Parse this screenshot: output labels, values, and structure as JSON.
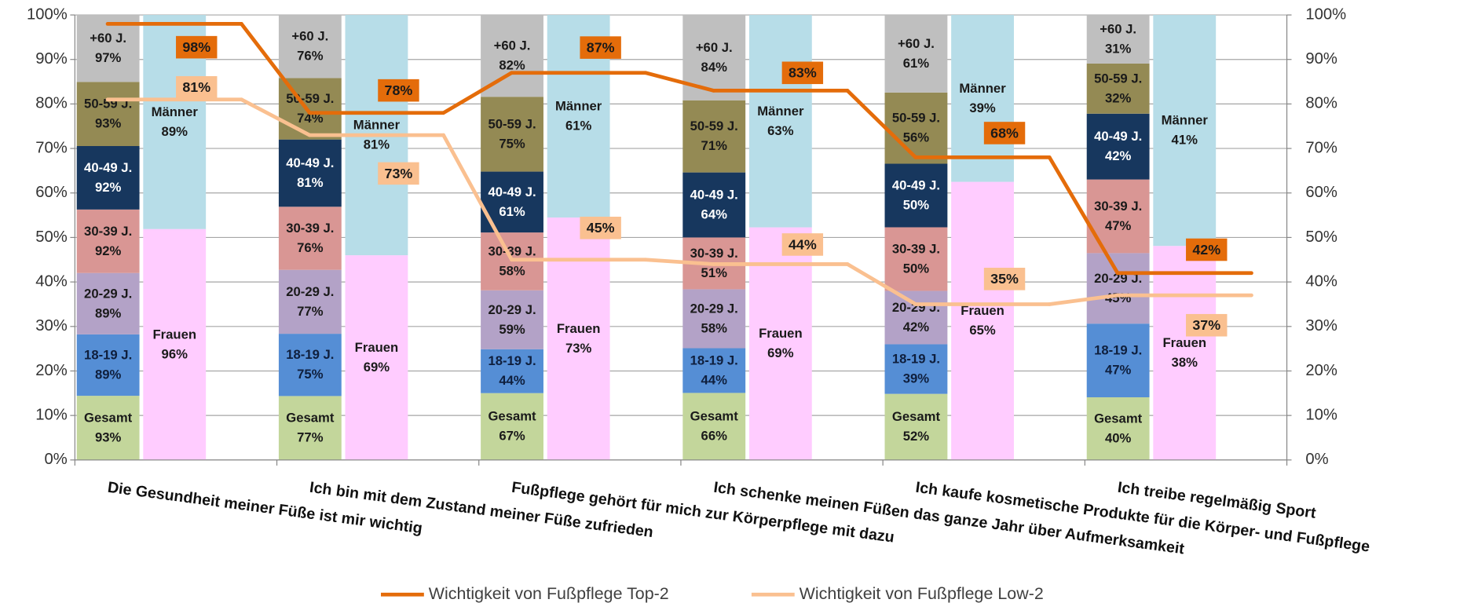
{
  "chart_data": {
    "type": "bar",
    "stacking": "percent",
    "categories": [
      "Die Gesundheit meiner Füße ist mir wichtig",
      "Ich bin mit dem Zustand meiner Füße zufrieden",
      "Fußpflege gehört für mich zur Körperpflege mit dazu",
      "Ich schenke meinen Füßen das ganze Jahr über Aufmerksamkeit",
      "Ich kaufe kosmetische Produkte für die Körper- und Fußpflege",
      "Ich treibe regelmäßig Sport"
    ],
    "stacks": [
      {
        "series": [
          {
            "name": "Gesamt",
            "color": "#c3d69b",
            "label_color": "#1a1a1a",
            "values": [
              93,
              77,
              67,
              66,
              52,
              40
            ],
            "value_labels": [
              "93%",
              "77%",
              "67%",
              "66%",
              "52%",
              "40%"
            ]
          },
          {
            "name": "18-19 J.",
            "color": "#558ed5",
            "label_color": "#0f1f3d",
            "values": [
              89,
              75,
              44,
              44,
              39,
              47
            ],
            "value_labels": [
              "89%",
              "75%",
              "44%",
              "44%",
              "39%",
              "47%"
            ]
          },
          {
            "name": "20-29 J.",
            "color": "#b3a2c7",
            "label_color": "#1a1a1a",
            "values": [
              89,
              77,
              59,
              58,
              42,
              45
            ],
            "value_labels": [
              "89%",
              "77%",
              "59%",
              "58%",
              "42%",
              "45%"
            ]
          },
          {
            "name": "30-39 J.",
            "color": "#d99694",
            "label_color": "#1a1a1a",
            "values": [
              92,
              76,
              58,
              51,
              50,
              47
            ],
            "value_labels": [
              "92%",
              "76%",
              "58%",
              "51%",
              "50%",
              "47%"
            ]
          },
          {
            "name": "40-49 J.",
            "color": "#17375e",
            "label_color": "#ffffff",
            "values": [
              92,
              81,
              61,
              64,
              50,
              42
            ],
            "value_labels": [
              "92%",
              "81%",
              "61%",
              "64%",
              "50%",
              "42%"
            ]
          },
          {
            "name": "50-59 J.",
            "color": "#948a54",
            "label_color": "#1a1a1a",
            "values": [
              93,
              74,
              75,
              71,
              56,
              32
            ],
            "value_labels": [
              "93%",
              "74%",
              "75%",
              "71%",
              "56%",
              "32%"
            ]
          },
          {
            "name": "+60 J.",
            "color": "#bfbfbf",
            "label_color": "#1a1a1a",
            "values": [
              97,
              76,
              82,
              84,
              61,
              31
            ],
            "value_labels": [
              "97%",
              "76%",
              "82%",
              "84%",
              "61%",
              "31%"
            ]
          }
        ]
      },
      {
        "series": [
          {
            "name": "Frauen",
            "color": "#ffccff",
            "label_color": "#1a1a1a",
            "values": [
              96,
              69,
              73,
              69,
              65,
              38
            ],
            "value_labels": [
              "96%",
              "69%",
              "73%",
              "69%",
              "65%",
              "38%"
            ]
          },
          {
            "name": "Männer",
            "color": "#b7dde8",
            "label_color": "#1a1a1a",
            "values": [
              89,
              81,
              61,
              63,
              39,
              41
            ],
            "value_labels": [
              "89%",
              "81%",
              "61%",
              "63%",
              "39%",
              "41%"
            ]
          }
        ]
      }
    ],
    "lines": [
      {
        "type": "line",
        "name": "Wichtigkeit von Fußpflege Top-2",
        "color": "#e46c0a",
        "axis": "y2",
        "values": [
          98,
          78,
          87,
          83,
          68,
          42
        ],
        "value_labels": [
          "98%",
          "78%",
          "87%",
          "83%",
          "68%",
          "42%"
        ]
      },
      {
        "type": "line",
        "name": "Wichtigkeit von Fußpflege Low-2",
        "color": "#fac090",
        "axis": "y2",
        "values": [
          81,
          73,
          45,
          44,
          35,
          37
        ],
        "value_labels": [
          "81%",
          "73%",
          "45%",
          "44%",
          "35%",
          "37%"
        ]
      }
    ],
    "ylim": [
      0,
      100
    ],
    "yticks": [
      {
        "value": 0,
        "label": "0%"
      },
      {
        "value": 10,
        "label": "10%"
      },
      {
        "value": 20,
        "label": "20%"
      },
      {
        "value": 30,
        "label": "30%"
      },
      {
        "value": 40,
        "label": "40%"
      },
      {
        "value": 50,
        "label": "50%"
      },
      {
        "value": 60,
        "label": "60%"
      },
      {
        "value": 70,
        "label": "70%"
      },
      {
        "value": 80,
        "label": "80%"
      },
      {
        "value": 90,
        "label": "90%"
      },
      {
        "value": 100,
        "label": "100%"
      }
    ],
    "y2lim": [
      0,
      100
    ],
    "y2ticks": [
      {
        "value": 0,
        "label": "0%"
      },
      {
        "value": 10,
        "label": "10%"
      },
      {
        "value": 20,
        "label": "20%"
      },
      {
        "value": 30,
        "label": "30%"
      },
      {
        "value": 40,
        "label": "40%"
      },
      {
        "value": 50,
        "label": "50%"
      },
      {
        "value": 60,
        "label": "60%"
      },
      {
        "value": 70,
        "label": "70%"
      },
      {
        "value": 80,
        "label": "80%"
      },
      {
        "value": 90,
        "label": "90%"
      },
      {
        "value": 100,
        "label": "100%"
      }
    ],
    "grid": true,
    "legend": "bottom"
  }
}
